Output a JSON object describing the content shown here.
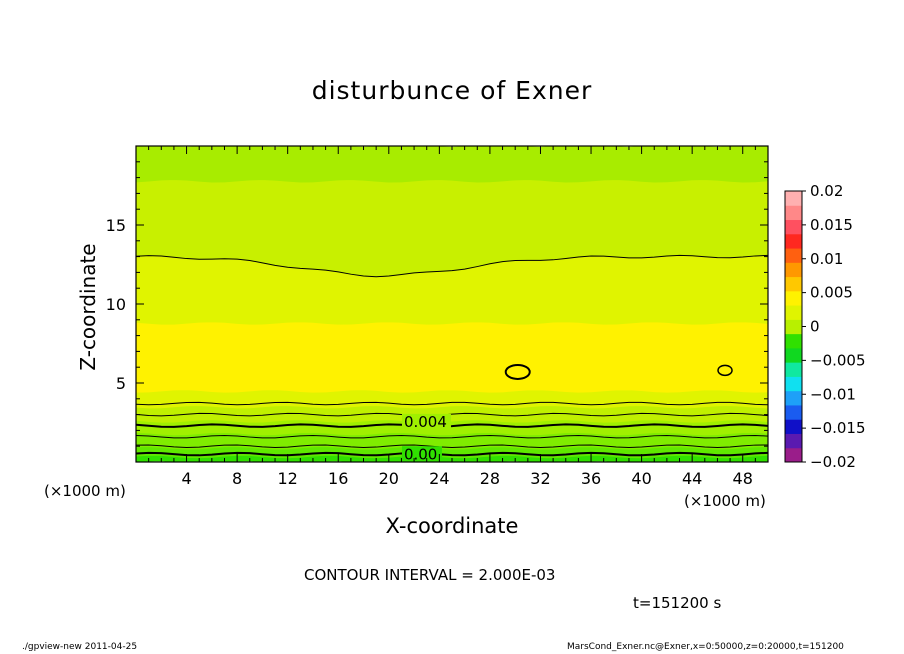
{
  "chart_data": {
    "type": "contour",
    "title": "disturbunce of Exner",
    "xlabel": "X-coordinate",
    "ylabel": "Z-coordinate",
    "x_unit_left": "(×1000 m)",
    "x_unit_right": "(×1000 m)",
    "xlim": [
      0,
      50
    ],
    "ylim": [
      0,
      20
    ],
    "xticks": [
      "4",
      "8",
      "12",
      "16",
      "20",
      "24",
      "28",
      "32",
      "36",
      "40",
      "44",
      "48"
    ],
    "yticks": [
      "5",
      "10",
      "15"
    ],
    "contour_interval_text": "CONTOUR INTERVAL = 2.000E-03",
    "time_text": "t=151200 s",
    "contour_labels": [
      "0.004",
      "0.00"
    ],
    "colorbar": {
      "ticks": [
        "0.02",
        "0.015",
        "0.01",
        "0.005",
        "0",
        "−0.005",
        "−0.01",
        "−0.015",
        "−0.02"
      ],
      "colors": [
        "#9a1d8a",
        "#5a1ab0",
        "#1010c8",
        "#1a5cf0",
        "#1ea0f8",
        "#10e0f0",
        "#10e8a0",
        "#10d820",
        "#30e000",
        "#b8f000",
        "#e0f400",
        "#fff200",
        "#ffc800",
        "#ff9800",
        "#ff6010",
        "#ff2820",
        "#ff5060",
        "#ff8888",
        "#ffb0b0"
      ]
    },
    "bands": [
      {
        "z": [
          0.0,
          0.35
        ],
        "color": "#30e000"
      },
      {
        "z": [
          0.35,
          0.9
        ],
        "color": "#60e800"
      },
      {
        "z": [
          0.9,
          1.8
        ],
        "color": "#80ec00"
      },
      {
        "z": [
          1.8,
          2.6
        ],
        "color": "#a0f000"
      },
      {
        "z": [
          2.6,
          3.5
        ],
        "color": "#c0f000"
      },
      {
        "z": [
          3.5,
          4.5
        ],
        "color": "#e0f400"
      },
      {
        "z": [
          4.5,
          8.8
        ],
        "color": "#fff200"
      },
      {
        "z": [
          8.8,
          13.0
        ],
        "color": "#e0f400"
      },
      {
        "z": [
          13.0,
          17.8
        ],
        "color": "#c8f000"
      },
      {
        "z": [
          17.8,
          20.0
        ],
        "color": "#a8ec00"
      }
    ]
  },
  "footer": {
    "left": "./gpview-new   2011-04-25",
    "right": "MarsCond_Exner.nc@Exner,x=0:50000,z=0:20000,t=151200"
  }
}
